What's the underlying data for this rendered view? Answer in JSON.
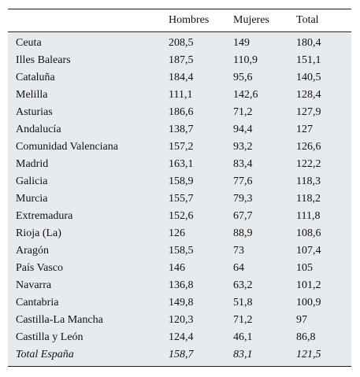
{
  "table": {
    "header": [
      "",
      "Hombres",
      "Mujeres",
      "Total"
    ],
    "rows": [
      [
        "Ceuta",
        "208,5",
        "149",
        "180,4"
      ],
      [
        "Illes Balears",
        "187,5",
        "110,9",
        "151,1"
      ],
      [
        "Cataluña",
        "184,4",
        "95,6",
        "140,5"
      ],
      [
        "Melilla",
        "111,1",
        "142,6",
        "128,4"
      ],
      [
        "Asturias",
        "186,6",
        "71,2",
        "127,9"
      ],
      [
        "Andalucía",
        "138,7",
        "94,4",
        "127"
      ],
      [
        "Comunidad Valenciana",
        "157,2",
        "93,2",
        "126,6"
      ],
      [
        "Madrid",
        "163,1",
        "83,4",
        "122,2"
      ],
      [
        "Galicia",
        "158,9",
        "77,6",
        "118,3"
      ],
      [
        "Murcia",
        "155,7",
        "79,3",
        "118,2"
      ],
      [
        "Extremadura",
        "152,6",
        "67,7",
        "111,8"
      ],
      [
        "Rioja (La)",
        "126",
        "88,9",
        "108,6"
      ],
      [
        "Aragón",
        "158,5",
        "73",
        "107,4"
      ],
      [
        "País Vasco",
        "146",
        "64",
        "105"
      ],
      [
        "Navarra",
        "136,8",
        "63,2",
        "101,2"
      ],
      [
        "Cantabria",
        "149,8",
        "51,8",
        "100,9"
      ],
      [
        "Castilla-La Mancha",
        "120,3",
        "71,2",
        "97"
      ],
      [
        "Castilla y León",
        "124,4",
        "46,1",
        "86,8"
      ],
      [
        "Total España",
        "158,7",
        "83,1",
        "121,5"
      ]
    ]
  }
}
